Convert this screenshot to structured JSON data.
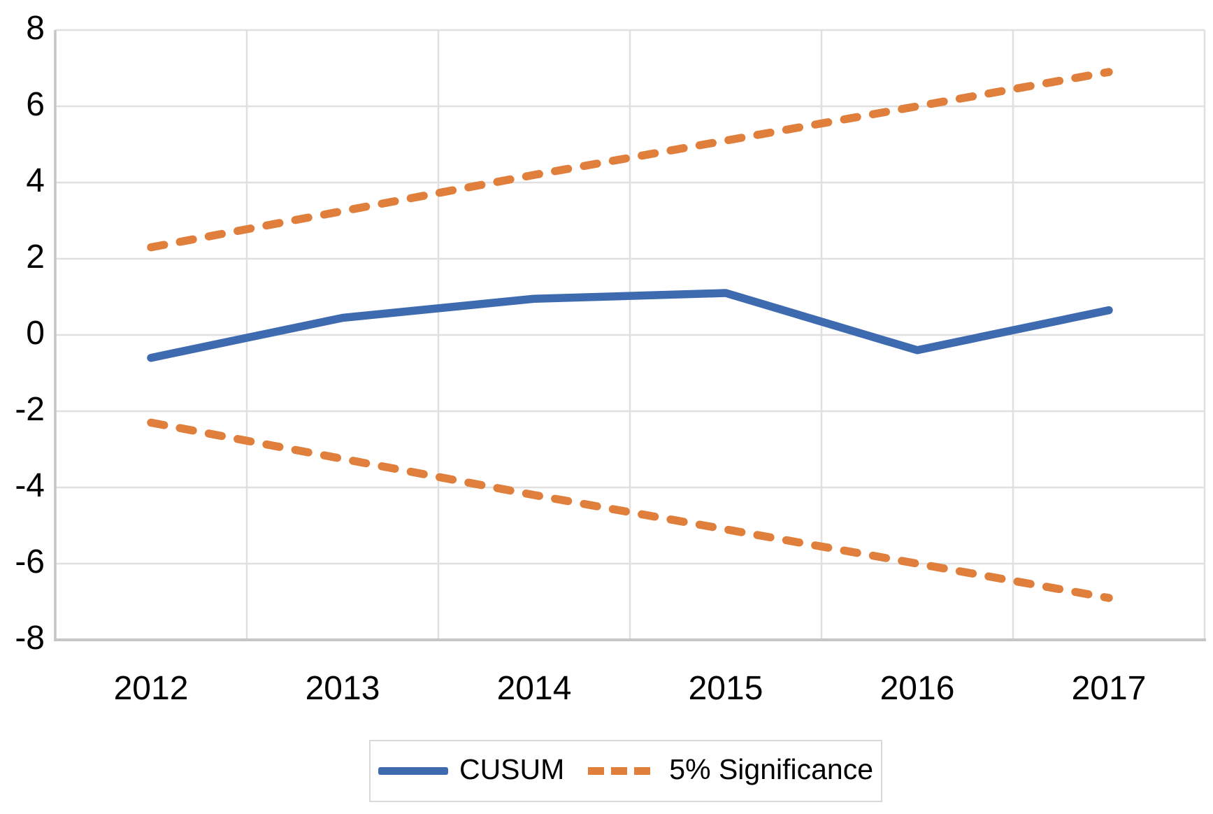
{
  "chart_data": {
    "type": "line",
    "title": "",
    "xlabel": "",
    "ylabel": "",
    "categories": [
      "2012",
      "2013",
      "2014",
      "2015",
      "2016",
      "2017"
    ],
    "series": [
      {
        "name": "CUSUM",
        "style": "solid",
        "color": "#3e6aaf",
        "values": [
          -0.6,
          0.45,
          0.95,
          1.1,
          -0.4,
          0.65
        ]
      },
      {
        "name": "5% Significance (upper bound)",
        "style": "dashed",
        "color": "#e07f3b",
        "values": [
          2.3,
          3.25,
          4.2,
          5.1,
          6.0,
          6.9
        ]
      },
      {
        "name": "5% Significance (lower bound)",
        "style": "dashed",
        "color": "#e07f3b",
        "values": [
          -2.3,
          -3.25,
          -4.2,
          -5.1,
          -6.0,
          -6.9
        ]
      }
    ],
    "ylim": [
      -8,
      8
    ],
    "y_ticks": [
      8,
      6,
      4,
      2,
      0,
      -2,
      -4,
      -6,
      -8
    ],
    "y_tick_labels": [
      "8",
      "6",
      "4",
      "2",
      "0",
      "-2",
      "-4",
      "-6",
      "-8"
    ],
    "grid": true,
    "legend_position": "bottom-center",
    "legend": [
      {
        "label": "CUSUM",
        "style": "solid",
        "color": "#3e6aaf"
      },
      {
        "label": "5% Significance",
        "style": "dashed",
        "color": "#e07f3b"
      }
    ]
  },
  "colors": {
    "background": "#ffffff",
    "cusum_blue": "#3e6aaf",
    "significance_orange": "#e07f3b",
    "gridline": "#e0e0e0",
    "axis_line": "#c6c6c6",
    "legend_border": "#d9d9d9",
    "text": "#000000"
  }
}
